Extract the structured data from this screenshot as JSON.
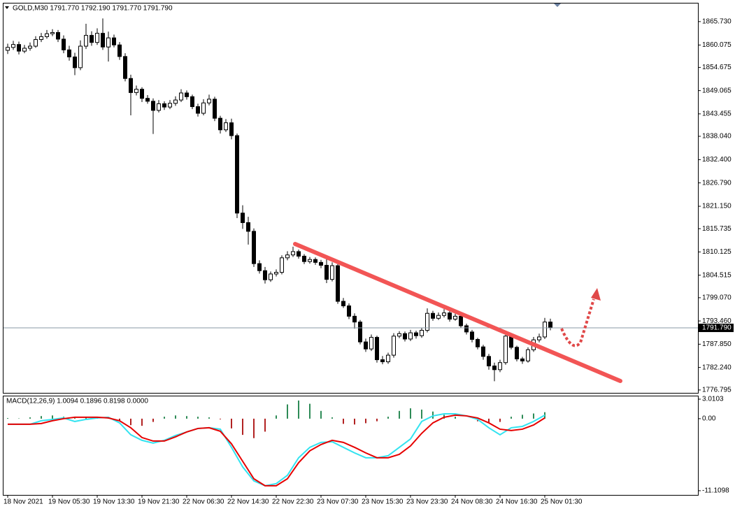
{
  "chart_data": [
    {
      "type": "candlestick",
      "title": "GOLD,M30  1791.770 1792.190 1791.770 1791.790",
      "categories": [
        "18 Nov 2021",
        null,
        null,
        null,
        null,
        null,
        null,
        null,
        "19 Nov 05:30",
        null,
        null,
        null,
        null,
        null,
        null,
        null,
        "19 Nov 13:30",
        null,
        null,
        null,
        null,
        null,
        null,
        null,
        "19 Nov 21:30",
        null,
        null,
        null,
        null,
        null,
        null,
        null,
        "22 Nov 06:30",
        null,
        null,
        null,
        null,
        null,
        null,
        null,
        "22 Nov 14:30",
        null,
        null,
        null,
        null,
        null,
        null,
        null,
        "22 Nov 22:30",
        null,
        null,
        null,
        null,
        null,
        null,
        null,
        "23 Nov 07:30",
        null,
        null,
        null,
        null,
        null,
        null,
        null,
        "23 Nov 15:30",
        null,
        null,
        null,
        null,
        null,
        null,
        null,
        "23 Nov 23:30",
        null,
        null,
        null,
        null,
        null,
        null,
        null,
        "24 Nov 08:30",
        null,
        null,
        null,
        null,
        null,
        null,
        null,
        "24 Nov 16:30",
        null,
        null,
        null,
        null,
        null,
        null,
        null,
        "25 Nov 01:30",
        null
      ],
      "open": [
        1858.8,
        1859.5,
        1860.2,
        1858.6,
        1859.3,
        1859.8,
        1861.4,
        1862.1,
        1862.8,
        1863.1,
        1861.5,
        1858.9,
        1857.2,
        1854.6,
        1859.8,
        1862.4,
        1860.7,
        1862.9,
        1859.6,
        1861.8,
        1860.1,
        1857.3,
        1852.0,
        1848.6,
        1849.4,
        1847.2,
        1846.5,
        1844.3,
        1845.9,
        1845.1,
        1846.0,
        1846.8,
        1848.5,
        1847.6,
        1845.2,
        1843.6,
        1846.1,
        1847.0,
        1842.4,
        1839.6,
        1841.3,
        1838.2,
        1819.5,
        1817.2,
        1815.1,
        1807.3,
        1805.6,
        1803.4,
        1804.8,
        1805.2,
        1808.7,
        1809.4,
        1810.2,
        1809.1,
        1807.8,
        1808.3,
        1807.6,
        1806.9,
        1803.5,
        1806.8,
        1798.2,
        1797.1,
        1794.6,
        1793.2,
        1788.4,
        1786.7,
        1789.5,
        1784.1,
        1783.6,
        1785.2,
        1789.8,
        1790.4,
        1789.1,
        1790.6,
        1789.9,
        1791.2,
        1795.3,
        1794.1,
        1794.8,
        1795.4,
        1793.9,
        1794.6,
        1792.3,
        1790.8,
        1789.0,
        1787.2,
        1784.9,
        1782.6,
        1781.7,
        1783.4,
        1789.8,
        1787.1,
        1784.3,
        1783.8,
        1786.5,
        1788.9,
        1789.6,
        1793.2
      ],
      "high": [
        1860.4,
        1861.1,
        1860.9,
        1860.1,
        1860.7,
        1862.2,
        1863.0,
        1863.7,
        1863.9,
        1863.7,
        1862.4,
        1859.9,
        1858.2,
        1861.2,
        1865.2,
        1863.4,
        1864.1,
        1866.5,
        1863.3,
        1862.6,
        1860.8,
        1858.1,
        1852.9,
        1850.3,
        1849.9,
        1848.0,
        1847.2,
        1846.8,
        1846.5,
        1846.8,
        1847.7,
        1849.4,
        1849.1,
        1848.1,
        1845.9,
        1847.0,
        1848.1,
        1847.6,
        1843.0,
        1842.2,
        1842.3,
        1838.7,
        1821.4,
        1818.6,
        1815.8,
        1808.1,
        1806.5,
        1805.4,
        1805.9,
        1809.3,
        1810.3,
        1811.4,
        1810.7,
        1809.6,
        1808.9,
        1808.8,
        1808.2,
        1809.3,
        1807.6,
        1807.2,
        1799.0,
        1797.7,
        1795.3,
        1793.7,
        1789.2,
        1790.2,
        1789.9,
        1785.0,
        1785.8,
        1790.5,
        1791.0,
        1790.9,
        1791.3,
        1791.1,
        1791.8,
        1796.5,
        1795.9,
        1795.5,
        1796.3,
        1795.9,
        1795.2,
        1795.0,
        1792.8,
        1791.3,
        1789.4,
        1787.7,
        1785.5,
        1783.4,
        1784.1,
        1790.7,
        1790.3,
        1787.5,
        1784.8,
        1787.1,
        1789.6,
        1790.4,
        1794.2,
        1794.0
      ],
      "low": [
        1857.9,
        1858.9,
        1857.8,
        1858.1,
        1858.7,
        1859.4,
        1860.8,
        1861.6,
        1862.2,
        1860.8,
        1858.1,
        1856.3,
        1852.8,
        1854.0,
        1859.1,
        1859.9,
        1860.1,
        1858.9,
        1856.1,
        1859.5,
        1856.5,
        1851.3,
        1843.1,
        1847.9,
        1846.3,
        1845.9,
        1838.6,
        1843.8,
        1844.4,
        1844.6,
        1845.4,
        1846.3,
        1846.9,
        1844.6,
        1842.8,
        1843.1,
        1845.5,
        1841.7,
        1838.7,
        1839.1,
        1837.3,
        1818.3,
        1815.7,
        1811.9,
        1806.5,
        1804.9,
        1802.5,
        1802.9,
        1804.2,
        1804.7,
        1808.1,
        1808.9,
        1808.5,
        1807.2,
        1807.3,
        1807.0,
        1806.2,
        1802.6,
        1803.0,
        1797.6,
        1796.6,
        1793.9,
        1791.6,
        1787.8,
        1786.0,
        1786.2,
        1783.4,
        1783.0,
        1783.1,
        1784.6,
        1789.3,
        1788.5,
        1788.6,
        1789.2,
        1789.4,
        1790.7,
        1793.5,
        1793.7,
        1794.3,
        1793.3,
        1793.5,
        1791.8,
        1790.2,
        1788.3,
        1786.6,
        1784.1,
        1781.7,
        1778.9,
        1781.1,
        1782.9,
        1786.6,
        1783.7,
        1783.1,
        1783.4,
        1786.0,
        1788.3,
        1789.1,
        1791.2
      ],
      "close": [
        1859.5,
        1860.2,
        1858.6,
        1859.3,
        1859.8,
        1861.4,
        1862.1,
        1862.8,
        1863.1,
        1861.5,
        1858.9,
        1857.2,
        1854.6,
        1859.8,
        1862.4,
        1860.7,
        1862.9,
        1859.6,
        1861.8,
        1860.1,
        1857.3,
        1852.0,
        1848.6,
        1849.4,
        1847.2,
        1846.5,
        1844.3,
        1845.9,
        1845.1,
        1846.0,
        1846.8,
        1848.5,
        1847.6,
        1845.2,
        1843.6,
        1846.1,
        1847.0,
        1842.4,
        1839.6,
        1841.3,
        1838.2,
        1819.5,
        1817.2,
        1815.1,
        1807.3,
        1805.6,
        1803.4,
        1804.8,
        1805.2,
        1808.7,
        1809.4,
        1810.2,
        1809.1,
        1807.8,
        1808.3,
        1807.6,
        1806.9,
        1803.5,
        1806.8,
        1798.2,
        1797.1,
        1794.6,
        1793.2,
        1788.4,
        1786.7,
        1789.5,
        1784.1,
        1783.6,
        1785.2,
        1789.8,
        1790.4,
        1789.1,
        1790.6,
        1789.9,
        1791.2,
        1795.3,
        1794.1,
        1794.8,
        1795.4,
        1793.9,
        1794.6,
        1792.3,
        1790.8,
        1789.0,
        1787.2,
        1784.9,
        1782.6,
        1781.7,
        1783.4,
        1789.8,
        1787.1,
        1784.3,
        1783.8,
        1786.5,
        1788.9,
        1789.6,
        1793.2,
        1791.79
      ],
      "up_color": "#ffffff",
      "down_color": "#000000",
      "ylim": [
        1776.1,
        1870.1
      ],
      "yticks": [
        {
          "value": 1865.73,
          "label": "1865.730"
        },
        {
          "value": 1860.075,
          "label": "1860.075"
        },
        {
          "value": 1854.675,
          "label": "1854.675"
        },
        {
          "value": 1849.065,
          "label": "1849.065"
        },
        {
          "value": 1843.455,
          "label": "1843.455"
        },
        {
          "value": 1838.04,
          "label": "1838.040"
        },
        {
          "value": 1832.4,
          "label": "1832.400"
        },
        {
          "value": 1826.79,
          "label": "1826.790"
        },
        {
          "value": 1821.15,
          "label": "1821.150"
        },
        {
          "value": 1815.735,
          "label": "1815.735"
        },
        {
          "value": 1810.125,
          "label": "1810.125"
        },
        {
          "value": 1804.515,
          "label": "1804.515"
        },
        {
          "value": 1799.07,
          "label": "1799.070"
        },
        {
          "value": 1793.46,
          "label": "1793.460"
        },
        {
          "value": 1787.85,
          "label": "1787.850"
        },
        {
          "value": 1782.24,
          "label": "1782.240"
        },
        {
          "value": 1776.795,
          "label": "1776.795"
        }
      ],
      "current_price": {
        "value": 1791.79,
        "label": "1791.790"
      }
    },
    {
      "type": "macd",
      "title": "MACD(12,26,9) 1.0094 0.1896 0.8198 0.0000",
      "x": [
        0,
        2,
        4,
        6,
        8,
        10,
        12,
        14,
        16,
        18,
        20,
        22,
        24,
        26,
        28,
        30,
        32,
        34,
        36,
        38,
        40,
        42,
        44,
        46,
        48,
        50,
        52,
        54,
        56,
        58,
        60,
        62,
        64,
        66,
        68,
        70,
        72,
        74,
        76,
        78,
        80,
        82,
        84,
        86,
        88,
        90,
        92,
        94,
        96
      ],
      "series": [
        {
          "color": "#33e3f0",
          "values": [
            -0.86,
            -0.86,
            -0.86,
            -0.32,
            -0.11,
            0.11,
            -0.43,
            -0.11,
            0.11,
            0.22,
            -0.65,
            -2.48,
            -3.34,
            -3.77,
            -3.34,
            -2.59,
            -2.05,
            -1.51,
            -1.4,
            -1.62,
            -4.42,
            -7.44,
            -9.59,
            -10.34,
            -10.02,
            -8.73,
            -6.03,
            -4.42,
            -3.66,
            -3.56,
            -4.42,
            -5.28,
            -6.03,
            -6.03,
            -5.71,
            -4.42,
            -3.13,
            -0.43,
            0.43,
            0.75,
            0.75,
            0.43,
            -0.11,
            -1.4,
            -2.48,
            -1.4,
            -1.19,
            -0.43,
            0.54
          ]
        },
        {
          "color": "#e60000",
          "values": [
            -0.86,
            -0.86,
            -0.86,
            -0.75,
            -0.32,
            0.0,
            0.22,
            0.22,
            0.22,
            0.11,
            -0.32,
            -1.4,
            -2.91,
            -3.45,
            -3.45,
            -2.8,
            -2.05,
            -1.51,
            -1.4,
            -1.94,
            -3.88,
            -6.57,
            -9.27,
            -10.34,
            -10.34,
            -9.27,
            -6.79,
            -4.96,
            -3.99,
            -3.34,
            -3.66,
            -4.42,
            -5.28,
            -6.03,
            -6.03,
            -5.5,
            -4.2,
            -2.26,
            -0.65,
            0.22,
            0.54,
            0.43,
            0.11,
            -0.65,
            -1.62,
            -1.83,
            -1.62,
            -0.97,
            0.11
          ]
        }
      ],
      "histogram": {
        "up_color": "#2e8b57",
        "down_color": "#b22222",
        "values": [
          0.1,
          0.05,
          0.2,
          0.4,
          0.5,
          0.3,
          0.1,
          0.2,
          0.3,
          0.1,
          -0.4,
          -1.0,
          -1.1,
          -0.5,
          0.3,
          0.5,
          0.4,
          0.3,
          0.2,
          -0.1,
          -1.5,
          -2.5,
          -3.0,
          -2.0,
          0.5,
          2.2,
          2.8,
          2.3,
          1.2,
          0.2,
          -0.8,
          -0.9,
          -0.7,
          -0.4,
          0.3,
          1.2,
          1.6,
          1.4,
          1.1,
          0.6,
          0.3,
          0.0,
          -0.4,
          -0.7,
          -0.5,
          0.3,
          0.6,
          0.8,
          1.0
        ]
      },
      "ylim": [
        -11.76,
        3.55
      ],
      "yticks": [
        3.0103,
        {
          "value": 0,
          "label": "0.00"
        },
        -11.1098
      ]
    }
  ]
}
